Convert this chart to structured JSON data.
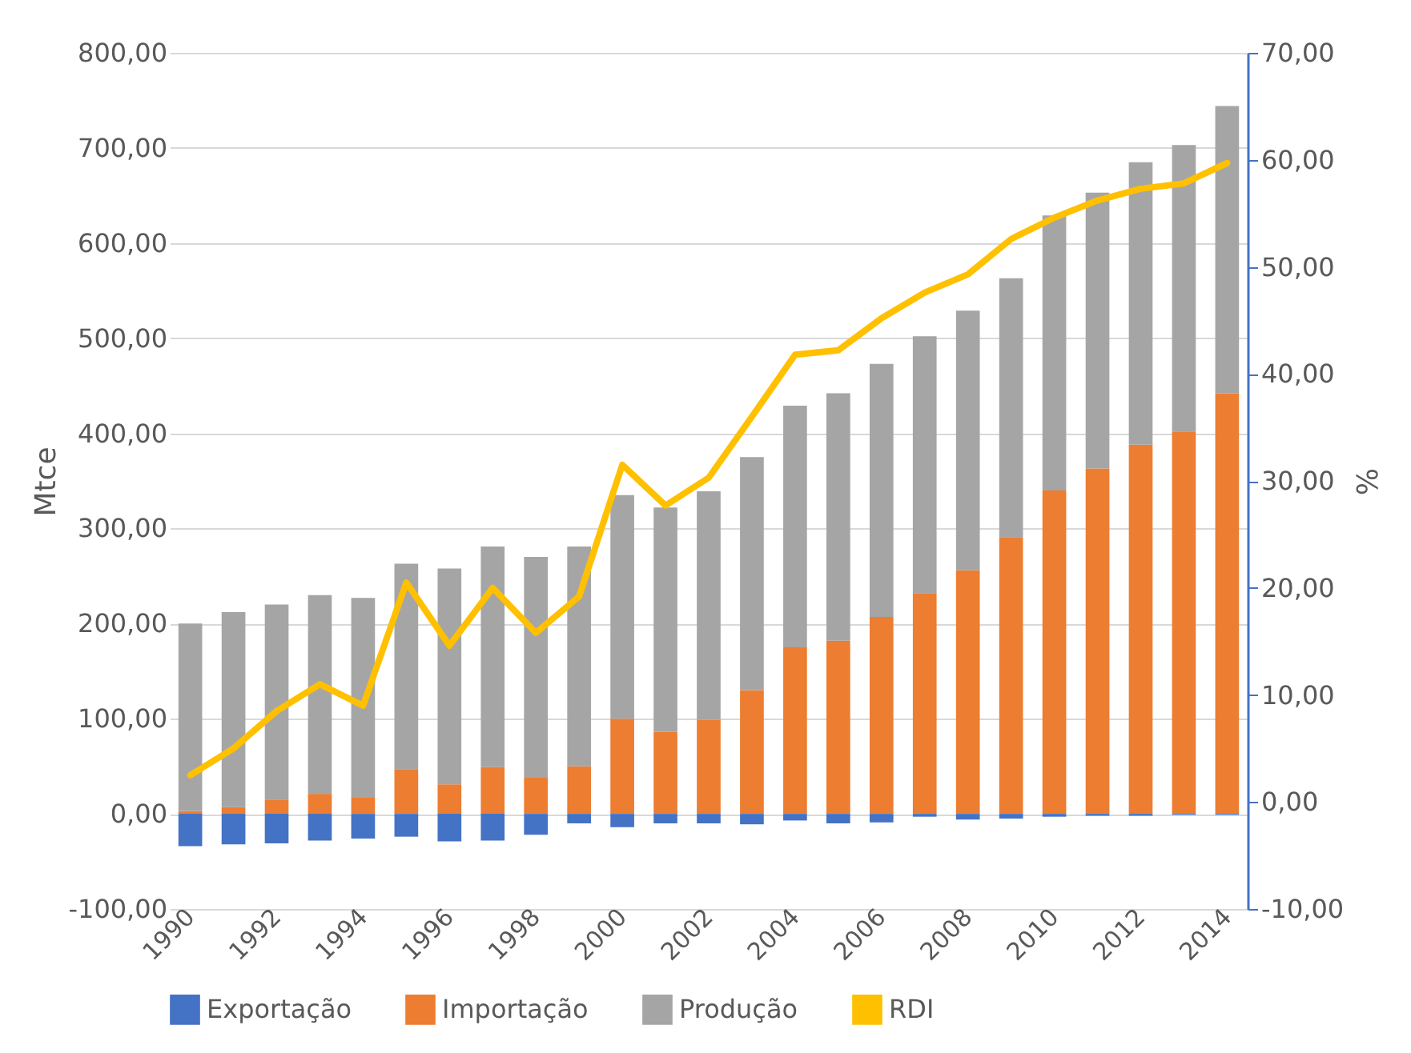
{
  "chart_data": {
    "type": "bar",
    "stacked": true,
    "ylabel": "Mtce",
    "y2label": "%",
    "categories": [
      "1990",
      null,
      "1992",
      null,
      "1994",
      null,
      "1996",
      null,
      "1998",
      null,
      "2000",
      null,
      "2002",
      null,
      "2004",
      null,
      "2006",
      null,
      "2008",
      null,
      "2010",
      null,
      "2012",
      null,
      "2014"
    ],
    "series": [
      {
        "name": "Exportação",
        "color": "#4472c4",
        "values": [
          -34,
          -32,
          -31,
          -28,
          -26,
          -24,
          -29,
          -28,
          -22,
          -10,
          -14,
          -10,
          -10,
          -11,
          -7,
          -10,
          -9,
          -3,
          -6,
          -5,
          -3,
          -2,
          -2,
          -1,
          -1
        ]
      },
      {
        "name": "Importação",
        "color": "#ed7d31",
        "values": [
          3,
          7,
          15,
          21,
          17,
          47,
          31,
          49,
          38,
          50,
          100,
          86,
          99,
          130,
          175,
          182,
          207,
          232,
          256,
          291,
          340,
          363,
          388,
          402,
          442
        ]
      },
      {
        "name": "Produção",
        "color": "#a5a5a5",
        "values": [
          197,
          205,
          205,
          209,
          210,
          216,
          227,
          232,
          232,
          231,
          235,
          236,
          240,
          245,
          254,
          260,
          266,
          270,
          273,
          272,
          289,
          290,
          297,
          301,
          302
        ]
      },
      {
        "name": "RDI",
        "type": "line",
        "axis": "y2",
        "color": "#ffc000",
        "values": [
          2.5,
          5,
          8.5,
          11,
          9,
          20.5,
          14.6,
          20,
          15.8,
          19.2,
          31.5,
          27.7,
          30.3,
          36,
          41.8,
          42.2,
          45.2,
          47.6,
          49.3,
          52.6,
          54.6,
          56.2,
          57.3,
          57.8,
          59.7
        ]
      }
    ],
    "ylim": [
      -100,
      800
    ],
    "yticks": [
      {
        "value": -100,
        "label": "-100,00"
      },
      {
        "value": 0,
        "label": "0,00"
      },
      {
        "value": 100,
        "label": "100,00"
      },
      {
        "value": 200,
        "label": "200,00"
      },
      {
        "value": 300,
        "label": "300,00"
      },
      {
        "value": 400,
        "label": "400,00"
      },
      {
        "value": 500,
        "label": "500,00"
      },
      {
        "value": 600,
        "label": "600,00"
      },
      {
        "value": 700,
        "label": "700,00"
      },
      {
        "value": 800,
        "label": "800,00"
      }
    ],
    "y2lim": [
      -10,
      70
    ],
    "y2ticks": [
      {
        "value": -10,
        "label": "-10,00"
      },
      {
        "value": 0,
        "label": "0,00"
      },
      {
        "value": 10,
        "label": "10,00"
      },
      {
        "value": 20,
        "label": "20,00"
      },
      {
        "value": 30,
        "label": "30,00"
      },
      {
        "value": 40,
        "label": "40,00"
      },
      {
        "value": 50,
        "label": "50,00"
      },
      {
        "value": 60,
        "label": "60,00"
      },
      {
        "value": 70,
        "label": "70,00"
      }
    ],
    "grid": "y",
    "legend": "bottom",
    "marker": "none",
    "line_style": "solid"
  }
}
